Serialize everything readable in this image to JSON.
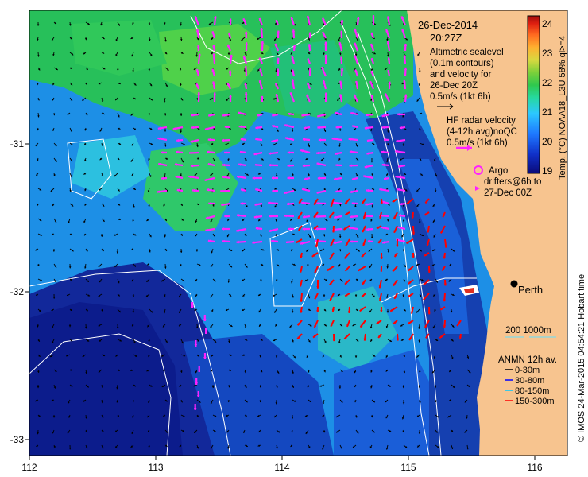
{
  "header": {
    "date": "26-Dec-2014",
    "time": "20:27Z"
  },
  "legend": {
    "altimetry_lines": [
      "Altimetric sealevel",
      "(0.1m contours)",
      "and velocity for",
      "26-Dec 20Z",
      "0.5m/s (1kt 6h)"
    ],
    "hf_lines": [
      "HF radar velocity",
      "(4-12h avg)noQC",
      "0.5m/s (1kt 6h)"
    ],
    "argo_label": "Argo",
    "drifter_lines": [
      "drifters@6h to",
      "27-Dec 00Z"
    ],
    "city": "Perth",
    "depth_label": "200  1000m",
    "anmn_title": "ANMN 12h av.",
    "anmn_items": [
      {
        "label": "0-30m",
        "color": "#000000"
      },
      {
        "label": "30-80m",
        "color": "#0000ff"
      },
      {
        "label": "80-150m",
        "color": "#00c8ff"
      },
      {
        "label": "150-300m",
        "color": "#ff0000"
      }
    ]
  },
  "colorbar": {
    "ticks": [
      "24",
      "23",
      "22",
      "21",
      "20",
      "19"
    ],
    "title": "Temp. (°C) NOAA18_L3U 58% ql>=4",
    "colors": [
      "#0a0a78",
      "#1030c8",
      "#1e78ff",
      "#2cc8ff",
      "#26d9a0",
      "#2fc84e",
      "#7bd03a",
      "#d8d840",
      "#ffb030",
      "#ff6a20",
      "#e02010",
      "#a00c0c"
    ]
  },
  "axes": {
    "x_ticks": [
      "112",
      "113",
      "114",
      "115",
      "116"
    ],
    "y_ticks": [
      "-31",
      "-32",
      "-33"
    ]
  },
  "credit": "© IMOS 24-Mar-2015 04:54:21 Hobart time",
  "colors": {
    "land": "#f7c48f",
    "ocean_cool": "#0c1c8c",
    "ocean_mid": "#1e64dc",
    "ocean_warm": "#2fbf4a",
    "hf_arrow": "#ff22ff",
    "anmn_deep": "#ff0000"
  }
}
